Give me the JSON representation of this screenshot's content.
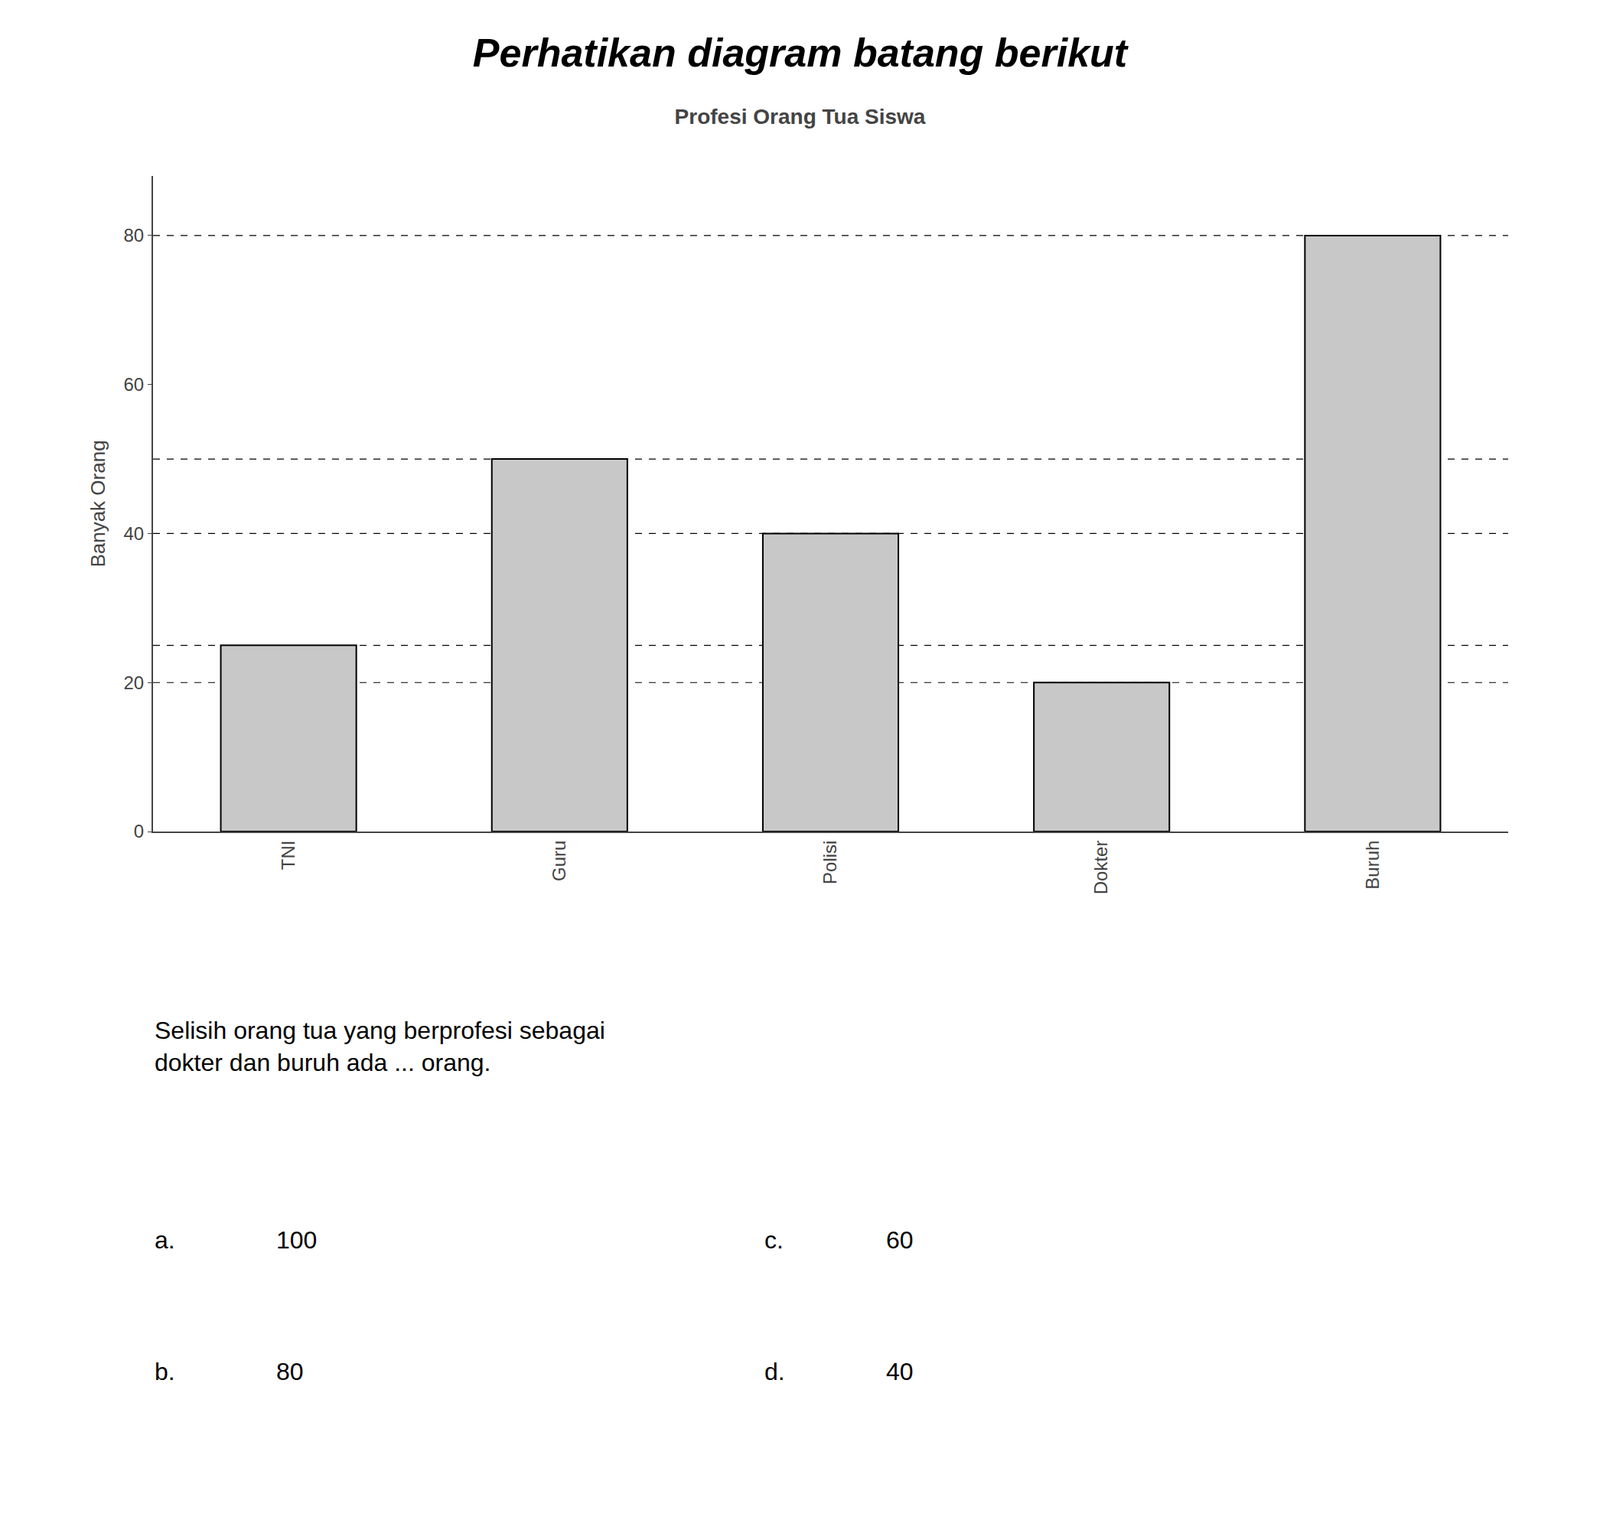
{
  "chart_data": {
    "type": "bar",
    "title": "Perhatikan diagram batang berikut",
    "subtitle": "Profesi Orang Tua Siswa",
    "ylabel": "Banyak Orang",
    "categories": [
      "TNI",
      "Guru",
      "Polisi",
      "Dokter",
      "Buruh"
    ],
    "values": [
      25,
      50,
      40,
      20,
      80
    ],
    "color": "#c8c8c8",
    "ylim": [
      0,
      88
    ],
    "yticks": [
      0,
      20,
      40,
      60,
      80
    ],
    "grid": false,
    "reference_lines": [
      20,
      25,
      40,
      50,
      80
    ],
    "annotations": [
      "Selisih orang tua yang berprofesi sebagai\ndokter dan buruh ada ... orang.",
      "a.",
      "100",
      "c.",
      "60",
      "b.",
      "80",
      "d.",
      "40"
    ]
  }
}
